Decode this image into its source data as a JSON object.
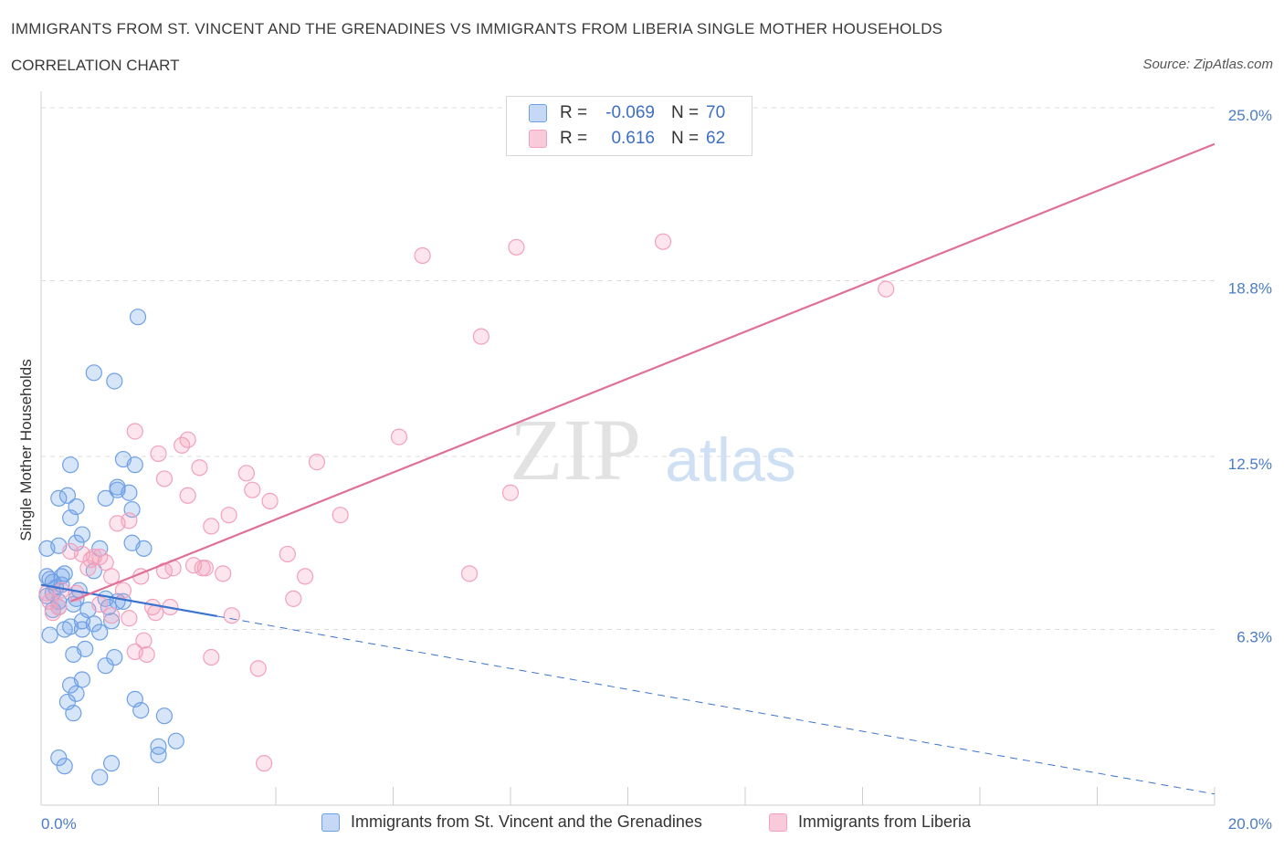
{
  "chart_data": {
    "type": "scatter",
    "title": "IMMIGRANTS FROM ST. VINCENT AND THE GRENADINES VS IMMIGRANTS FROM LIBERIA SINGLE MOTHER HOUSEHOLDS",
    "subtitle": "CORRELATION CHART",
    "source": "Source: ZipAtlas.com",
    "ylabel": "Single Mother Households",
    "xlim": [
      0,
      20
    ],
    "ylim": [
      0,
      25
    ],
    "x_tick_labels": {
      "left": "0.0%",
      "right": "20.0%"
    },
    "y_ticks": [
      {
        "value": 6.3,
        "label": "6.3%"
      },
      {
        "value": 12.5,
        "label": "12.5%"
      },
      {
        "value": 18.8,
        "label": "18.8%"
      },
      {
        "value": 25.0,
        "label": "25.0%"
      }
    ],
    "watermark": {
      "zip": "ZIP",
      "atlas": "atlas"
    },
    "legend": [
      {
        "r_label": "R =",
        "r_value": "-0.069",
        "n_label": "N =",
        "n_value": "70"
      },
      {
        "r_label": "R =",
        "r_value": "0.616",
        "n_label": "N =",
        "n_value": "62"
      }
    ],
    "series": [
      {
        "name": "Immigrants from St. Vincent and the Grenadines",
        "color": "#6fa0e6",
        "line_color": "#3a72d0",
        "trend": {
          "x0": 0,
          "y0": 7.9,
          "x1": 20,
          "y1": 0.4,
          "solid_until": 3.0
        },
        "points": [
          [
            0.1,
            9.2
          ],
          [
            0.1,
            8.2
          ],
          [
            0.15,
            8.1
          ],
          [
            0.2,
            8.0
          ],
          [
            0.2,
            7.6
          ],
          [
            0.25,
            7.8
          ],
          [
            0.1,
            7.5
          ],
          [
            0.3,
            7.3
          ],
          [
            0.2,
            7.0
          ],
          [
            0.15,
            6.1
          ],
          [
            0.3,
            7.1
          ],
          [
            0.35,
            8.2
          ],
          [
            0.3,
            9.3
          ],
          [
            0.4,
            8.3
          ],
          [
            0.3,
            11.0
          ],
          [
            0.4,
            6.3
          ],
          [
            0.5,
            6.4
          ],
          [
            0.45,
            11.1
          ],
          [
            0.5,
            10.3
          ],
          [
            0.5,
            12.2
          ],
          [
            0.55,
            7.2
          ],
          [
            0.6,
            9.4
          ],
          [
            0.55,
            5.4
          ],
          [
            0.6,
            10.7
          ],
          [
            0.7,
            9.7
          ],
          [
            0.65,
            7.7
          ],
          [
            0.7,
            6.6
          ],
          [
            0.7,
            6.3
          ],
          [
            0.75,
            5.6
          ],
          [
            0.5,
            4.3
          ],
          [
            0.45,
            3.7
          ],
          [
            0.55,
            3.3
          ],
          [
            0.7,
            4.5
          ],
          [
            0.6,
            4.0
          ],
          [
            0.9,
            8.4
          ],
          [
            1.0,
            9.2
          ],
          [
            0.9,
            6.5
          ],
          [
            1.0,
            6.2
          ],
          [
            1.1,
            7.4
          ],
          [
            1.1,
            5.0
          ],
          [
            1.0,
            1.0
          ],
          [
            1.1,
            11.0
          ],
          [
            1.15,
            7.1
          ],
          [
            1.2,
            6.6
          ],
          [
            1.2,
            1.5
          ],
          [
            1.3,
            11.4
          ],
          [
            1.25,
            5.3
          ],
          [
            1.3,
            7.3
          ],
          [
            1.3,
            11.3
          ],
          [
            1.4,
            12.4
          ],
          [
            1.4,
            7.3
          ],
          [
            1.5,
            11.2
          ],
          [
            1.55,
            9.4
          ],
          [
            1.55,
            10.6
          ],
          [
            1.6,
            12.2
          ],
          [
            1.6,
            3.8
          ],
          [
            1.7,
            3.4
          ],
          [
            1.75,
            9.2
          ],
          [
            1.65,
            17.5
          ],
          [
            1.25,
            15.2
          ],
          [
            0.9,
            15.5
          ],
          [
            2.0,
            2.1
          ],
          [
            2.1,
            3.2
          ],
          [
            2.3,
            2.3
          ],
          [
            0.3,
            1.7
          ],
          [
            0.4,
            1.4
          ],
          [
            2.0,
            1.8
          ],
          [
            0.6,
            7.4
          ],
          [
            0.35,
            7.9
          ],
          [
            0.8,
            7.0
          ]
        ]
      },
      {
        "name": "Immigrants from Liberia",
        "color": "#f3a0bc",
        "line_color": "#e07098",
        "trend": {
          "x0": 0.5,
          "y0": 7.3,
          "x1": 20,
          "y1": 23.7
        },
        "points": [
          [
            0.1,
            7.6
          ],
          [
            0.15,
            7.3
          ],
          [
            0.2,
            6.9
          ],
          [
            0.3,
            7.1
          ],
          [
            0.35,
            7.7
          ],
          [
            0.5,
            9.1
          ],
          [
            0.6,
            7.6
          ],
          [
            0.7,
            9.0
          ],
          [
            0.8,
            8.5
          ],
          [
            0.85,
            8.8
          ],
          [
            0.9,
            8.9
          ],
          [
            1.0,
            7.2
          ],
          [
            1.0,
            8.9
          ],
          [
            1.1,
            8.7
          ],
          [
            1.2,
            6.8
          ],
          [
            1.2,
            8.2
          ],
          [
            1.3,
            10.1
          ],
          [
            1.4,
            7.7
          ],
          [
            1.5,
            10.2
          ],
          [
            1.6,
            5.5
          ],
          [
            1.5,
            6.7
          ],
          [
            1.6,
            13.4
          ],
          [
            1.7,
            8.2
          ],
          [
            1.75,
            5.9
          ],
          [
            1.8,
            5.4
          ],
          [
            1.9,
            7.1
          ],
          [
            1.95,
            6.9
          ],
          [
            2.0,
            12.6
          ],
          [
            2.1,
            11.7
          ],
          [
            2.1,
            8.4
          ],
          [
            2.2,
            7.1
          ],
          [
            2.25,
            8.5
          ],
          [
            2.4,
            12.9
          ],
          [
            2.5,
            11.1
          ],
          [
            2.5,
            13.1
          ],
          [
            2.6,
            8.6
          ],
          [
            2.7,
            12.1
          ],
          [
            2.75,
            8.5
          ],
          [
            2.8,
            8.5
          ],
          [
            2.9,
            10.0
          ],
          [
            3.1,
            8.3
          ],
          [
            3.2,
            10.4
          ],
          [
            3.25,
            6.8
          ],
          [
            3.5,
            11.9
          ],
          [
            3.6,
            11.3
          ],
          [
            3.7,
            4.9
          ],
          [
            3.9,
            10.9
          ],
          [
            4.2,
            9.0
          ],
          [
            4.3,
            7.4
          ],
          [
            4.5,
            8.2
          ],
          [
            4.7,
            12.3
          ],
          [
            5.1,
            10.4
          ],
          [
            6.1,
            13.2
          ],
          [
            6.5,
            19.7
          ],
          [
            7.3,
            8.3
          ],
          [
            7.5,
            16.8
          ],
          [
            8.0,
            11.2
          ],
          [
            8.1,
            20.0
          ],
          [
            10.6,
            20.2
          ],
          [
            14.4,
            18.5
          ],
          [
            2.9,
            5.3
          ],
          [
            3.8,
            1.5
          ]
        ]
      }
    ]
  }
}
